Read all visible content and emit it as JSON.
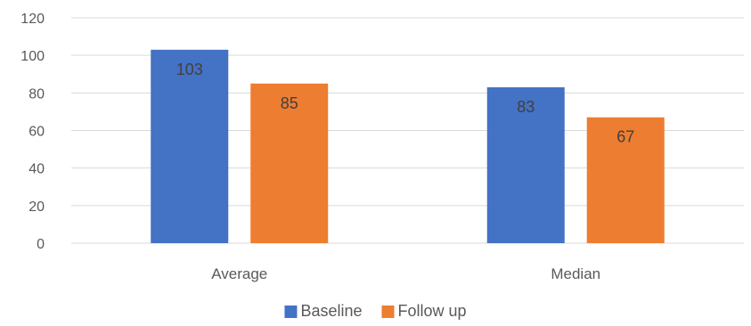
{
  "chart_data": {
    "type": "bar",
    "categories": [
      "Average",
      "Median"
    ],
    "series": [
      {
        "name": "Baseline",
        "values": [
          103,
          83
        ],
        "color": "#4472c4"
      },
      {
        "name": "Follow up",
        "values": [
          85,
          67
        ],
        "color": "#ed7d31"
      }
    ],
    "yticks": [
      0,
      20,
      40,
      60,
      80,
      100,
      120
    ],
    "ylim": [
      0,
      120
    ],
    "grid": true,
    "legend_position": "bottom",
    "title": "",
    "xlabel": "",
    "ylabel": ""
  }
}
